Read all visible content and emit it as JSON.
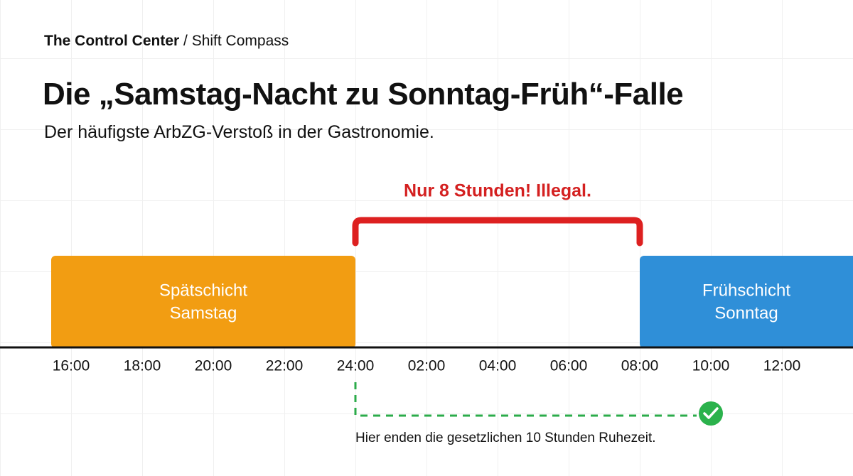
{
  "header": {
    "breadcrumb": [
      "The Control Center",
      "Shift Compass"
    ],
    "separator": "/",
    "title": "Die „Samstag-Nacht zu Sonntag-Früh“-Falle",
    "subtitle": "Der häufigste ArbZG-Verstoß in der Gastronomie."
  },
  "annotation": "Nur 8 Stunden! Illegal.",
  "shifts": [
    {
      "lines": [
        "Spätschicht",
        "Samstag"
      ]
    },
    {
      "lines": [
        "Frühschicht",
        "Sonntag"
      ]
    }
  ],
  "timeline": {
    "ticks": [
      "16:00",
      "18:00",
      "20:00",
      "22:00",
      "24:00",
      "02:00",
      "04:00",
      "06:00",
      "08:00",
      "10:00",
      "12:00"
    ]
  },
  "note": "Hier enden die gesetzlichen 10 Stunden Ruhezeit."
}
